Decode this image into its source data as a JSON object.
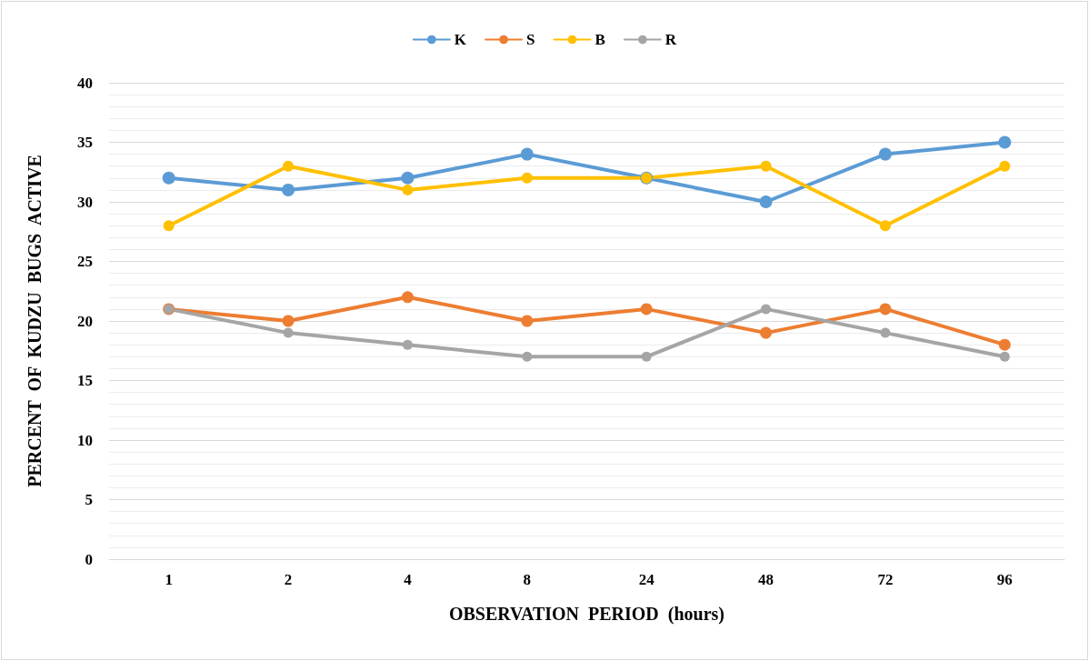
{
  "chart_data": {
    "type": "line",
    "xlabel": "OBSERVATION  PERIOD  (hours)",
    "ylabel": "PERCENT  OF  KUDZU  BUGS  ACTIVE",
    "categories": [
      "1",
      "2",
      "4",
      "8",
      "24",
      "48",
      "72",
      "96"
    ],
    "series": [
      {
        "name": "K",
        "color": "#5b9bd5",
        "values": [
          32,
          31,
          32,
          34,
          32,
          30,
          34,
          35
        ]
      },
      {
        "name": "S",
        "color": "#ed7d31",
        "values": [
          21,
          20,
          22,
          20,
          21,
          19,
          21,
          18
        ]
      },
      {
        "name": "B",
        "color": "#ffc000",
        "values": [
          28,
          33,
          31,
          32,
          32,
          33,
          28,
          33
        ]
      },
      {
        "name": "R",
        "color": "#a5a5a5",
        "values": [
          21,
          19,
          18,
          17,
          17,
          21,
          19,
          17
        ]
      }
    ],
    "ylim": [
      0,
      40
    ],
    "yticks": [
      0,
      5,
      10,
      15,
      20,
      25,
      30,
      35,
      40
    ],
    "grid": "y",
    "legend": "top",
    "marker": "circle",
    "line_style": "solid"
  }
}
